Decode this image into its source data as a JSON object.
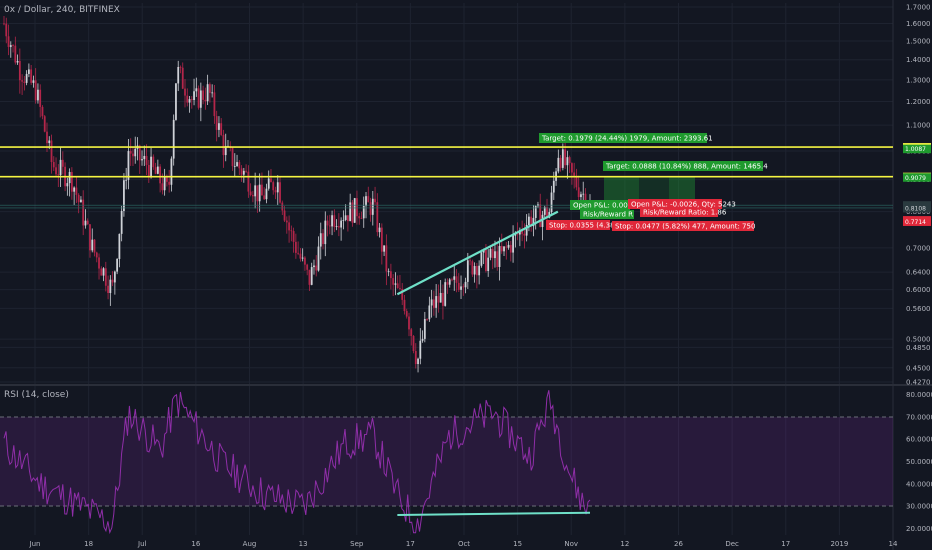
{
  "header": {
    "title": "0x / Dollar, 240, BITFINEX"
  },
  "rsi_header": {
    "title": "RSI (14, close)"
  },
  "colors": {
    "background": "#131722",
    "grid": "#1e2330",
    "candle_up": "#cfd2d8",
    "candle_down": "#b4264a",
    "yellow_line": "#f5f542",
    "trend_line": "#6fe0c8",
    "rsi_line": "#8f2ea8",
    "rsi_band": "rgba(120,40,150,0.22)",
    "target_green": "#1f9a2e",
    "stop_red": "#e0283a",
    "target_zone": "rgba(30,140,50,0.45)"
  },
  "price_axis": {
    "labels": [
      "1.7000",
      "1.6000",
      "1.5000",
      "1.4000",
      "1.3000",
      "1.2000",
      "1.1000",
      "1.0000",
      "0.9000",
      "0.8000",
      "0.7000",
      "0.6400",
      "0.6000",
      "0.5600",
      "0.5000",
      "0.4850",
      "0.4500",
      "0.4270"
    ],
    "tags": [
      {
        "text": "1.0147",
        "kind": "yellow"
      },
      {
        "text": "1.0087",
        "kind": "green"
      },
      {
        "text": "0.9098",
        "kind": "yellow"
      },
      {
        "text": "0.9079",
        "kind": "green"
      },
      {
        "text": "0.8191",
        "kind": "dark"
      },
      {
        "text": "0.8165",
        "kind": "dark"
      },
      {
        "text": "0.8108",
        "kind": "dark"
      },
      {
        "text": "0.7753",
        "kind": "red"
      },
      {
        "text": "0.7714",
        "kind": "red"
      }
    ]
  },
  "rsi_axis": {
    "labels": [
      "80.0000",
      "70.0000",
      "60.0000",
      "50.0000",
      "40.0000",
      "30.0000",
      "20.0000"
    ]
  },
  "date_axis": {
    "labels": [
      "Jun",
      "18",
      "Jul",
      "16",
      "Aug",
      "13",
      "Sep",
      "17",
      "Oct",
      "15",
      "Nov",
      "12",
      "26",
      "Dec",
      "17",
      "2019",
      "14"
    ]
  },
  "positions": {
    "long": {
      "target": "Target: 0.1979 (24.44%) 1979, Amount: 2393.61",
      "open": "Open P&L: 0.005",
      "ratio": "Risk/Reward R",
      "stop": "Stop: 0.0355 (4.38"
    },
    "second": {
      "target": "Target: 0.0888 (10.84%) 888, Amount: 1465.4",
      "open": "Open P&L: -0.0026, Qty: 5243",
      "ratio": "Risk/Reward Ratio: 1.86",
      "stop": "Stop: 0.0477 (5.82%) 477, Amount: 750"
    }
  },
  "chart_data": {
    "type": "candlestick",
    "title": "0x / Dollar, 240, BITFINEX",
    "y_scale": "log",
    "ylim": [
      0.427,
      1.7
    ],
    "horizontal_lines": [
      1.0147,
      0.9098
    ],
    "trendline": {
      "from": [
        "Sep 07",
        0.59
      ],
      "to": [
        "Oct 17",
        0.8
      ]
    },
    "price_path": [
      [
        "Jun 01",
        1.6
      ],
      [
        "Jun 05",
        1.35
      ],
      [
        "Jun 09",
        1.25
      ],
      [
        "Jun 13",
        0.95
      ],
      [
        "Jun 18",
        0.9
      ],
      [
        "Jun 23",
        0.7
      ],
      [
        "Jun 28",
        0.6
      ],
      [
        "Jul 02",
        1.0
      ],
      [
        "Jul 07",
        0.95
      ],
      [
        "Jul 12",
        0.86
      ],
      [
        "Jul 14",
        1.35
      ],
      [
        "Jul 18",
        1.2
      ],
      [
        "Jul 22",
        1.25
      ],
      [
        "Jul 26",
        1.0
      ],
      [
        "Jul 31",
        0.92
      ],
      [
        "Aug 04",
        0.84
      ],
      [
        "Aug 08",
        0.9
      ],
      [
        "Aug 11",
        0.75
      ],
      [
        "Aug 16",
        0.62
      ],
      [
        "Aug 21",
        0.78
      ],
      [
        "Aug 26",
        0.8
      ],
      [
        "Sep 01",
        0.82
      ],
      [
        "Sep 05",
        0.62
      ],
      [
        "Sep 09",
        0.57
      ],
      [
        "Sep 12",
        0.46
      ],
      [
        "Sep 15",
        0.56
      ],
      [
        "Sep 20",
        0.6
      ],
      [
        "Sep 26",
        0.66
      ],
      [
        "Oct 03",
        0.68
      ],
      [
        "Oct 10",
        0.78
      ],
      [
        "Oct 15",
        0.8
      ],
      [
        "Oct 17",
        1.0
      ],
      [
        "Oct 20",
        0.92
      ],
      [
        "Oct 24",
        0.84
      ],
      [
        "Oct 25",
        0.82
      ]
    ],
    "rsi": {
      "title": "RSI (14, close)",
      "ylim": [
        17,
        83
      ],
      "bands": [
        30,
        70
      ],
      "values": [
        [
          "Jun 01",
          58
        ],
        [
          "Jun 10",
          40
        ],
        [
          "Jun 20",
          30
        ],
        [
          "Jun 28",
          22
        ],
        [
          "Jul 02",
          72
        ],
        [
          "Jul 10",
          55
        ],
        [
          "Jul 14",
          78
        ],
        [
          "Jul 25",
          50
        ],
        [
          "Aug 05",
          35
        ],
        [
          "Aug 15",
          30
        ],
        [
          "Aug 25",
          58
        ],
        [
          "Sep 01",
          62
        ],
        [
          "Sep 07",
          35
        ],
        [
          "Sep 12",
          22
        ],
        [
          "Sep 20",
          62
        ],
        [
          "Oct 01",
          72
        ],
        [
          "Oct 10",
          52
        ],
        [
          "Oct 15",
          78
        ],
        [
          "Oct 20",
          45
        ],
        [
          "Oct 24",
          28
        ],
        [
          "Oct 25",
          36
        ]
      ],
      "trendline": {
        "from": [
          "Sep 07",
          26
        ],
        "to": [
          "Oct 25",
          27
        ]
      }
    }
  }
}
